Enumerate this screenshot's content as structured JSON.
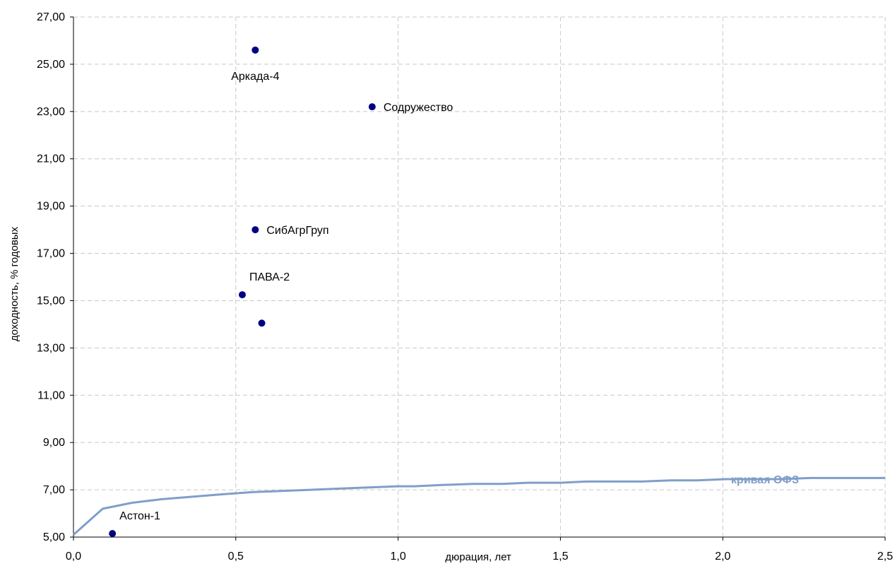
{
  "chart_data": {
    "type": "scatter",
    "title": "",
    "xlabel": "дюрация, лет",
    "ylabel": "доходность, % годовых",
    "xlim": [
      0,
      2.5
    ],
    "ylim": [
      5,
      27
    ],
    "x_ticks": [
      0,
      0.5,
      1.0,
      1.5,
      2.0,
      2.5
    ],
    "x_tick_labels": [
      "0,0",
      "0,5",
      "1,0",
      "1,5",
      "2,0",
      "2,5"
    ],
    "y_ticks": [
      5,
      7,
      9,
      11,
      13,
      15,
      17,
      19,
      21,
      23,
      25,
      27
    ],
    "y_tick_labels": [
      "5,00",
      "7,00",
      "9,00",
      "11,00",
      "13,00",
      "15,00",
      "17,00",
      "19,00",
      "21,00",
      "23,00",
      "25,00",
      "27,00"
    ],
    "grid": true,
    "colors": {
      "points": "#000080",
      "curve": "#7f9fc9",
      "grid": "#c8c8c8",
      "axis": "#000000"
    },
    "points": [
      {
        "label": "Аркада-4",
        "x": 0.56,
        "y": 25.6,
        "label_pos": "below"
      },
      {
        "label": "Содружество",
        "x": 0.92,
        "y": 23.2,
        "label_pos": "right"
      },
      {
        "label": "СибАгрГруп",
        "x": 0.56,
        "y": 18.0,
        "label_pos": "right"
      },
      {
        "label": "ПАВА-2",
        "x": 0.52,
        "y": 15.25,
        "label_pos": "above-right"
      },
      {
        "label": "",
        "x": 0.58,
        "y": 14.05,
        "label_pos": "none"
      },
      {
        "label": "Астон-1",
        "x": 0.12,
        "y": 5.15,
        "label_pos": "above-right"
      }
    ],
    "series": [
      {
        "name": "кривая ОФЗ",
        "type": "line",
        "x": [
          0.0,
          0.09,
          0.18,
          0.27,
          0.36,
          0.45,
          0.55,
          0.64,
          0.73,
          0.82,
          0.91,
          1.0,
          1.05,
          1.13,
          1.23,
          1.32,
          1.4,
          1.5,
          1.58,
          1.67,
          1.75,
          1.84,
          1.92,
          2.01,
          2.1,
          2.18,
          2.27,
          2.35,
          2.5
        ],
        "y": [
          5.1,
          6.2,
          6.45,
          6.6,
          6.7,
          6.8,
          6.9,
          6.95,
          7.0,
          7.05,
          7.1,
          7.15,
          7.15,
          7.2,
          7.25,
          7.25,
          7.3,
          7.3,
          7.35,
          7.35,
          7.35,
          7.4,
          7.4,
          7.45,
          7.45,
          7.45,
          7.5,
          7.5,
          7.5
        ]
      }
    ]
  }
}
